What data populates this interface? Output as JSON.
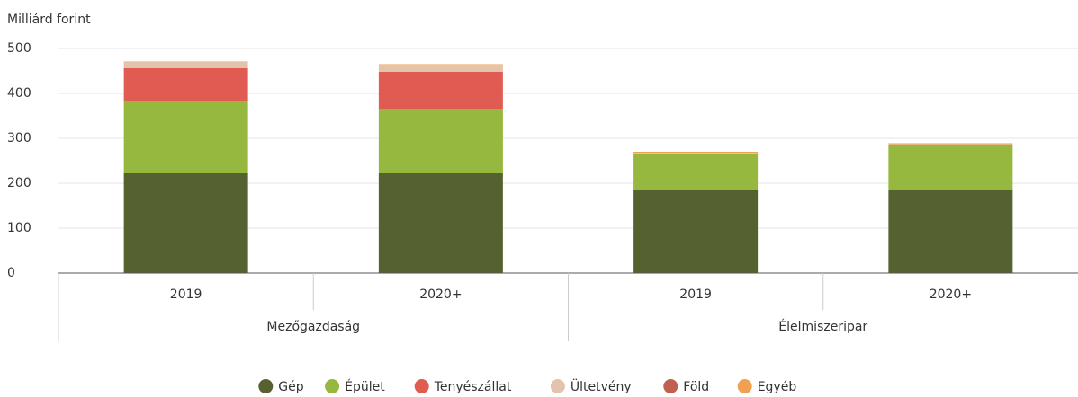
{
  "chart_data": {
    "type": "stacked-bar",
    "y_axis_title": "Milliárd forint",
    "categories": [
      "2019",
      "2020+",
      "2019",
      "2020+"
    ],
    "groups": [
      "Mezőgazdaság",
      "Élelmiszeripar"
    ],
    "series": [
      {
        "name": "Gép",
        "color": "#556230",
        "values": [
          222,
          222,
          186,
          186
        ]
      },
      {
        "name": "Épület",
        "color": "#96b83f",
        "values": [
          160,
          144,
          80,
          100
        ]
      },
      {
        "name": "Tenyészállat",
        "color": "#e05c52",
        "values": [
          74,
          82,
          0,
          0
        ]
      },
      {
        "name": "Ültetvény",
        "color": "#e3c3ac",
        "values": [
          14,
          16,
          2,
          1
        ]
      },
      {
        "name": "Föld",
        "color": "#c0604f",
        "values": [
          0,
          0,
          0,
          0
        ]
      },
      {
        "name": "Egyéb",
        "color": "#f0a050",
        "values": [
          1,
          1,
          2,
          2
        ]
      }
    ],
    "ylim": [
      0,
      500
    ],
    "yticks": [
      0,
      100,
      200,
      300,
      400,
      500
    ],
    "grid": true,
    "legend": "bottom"
  }
}
